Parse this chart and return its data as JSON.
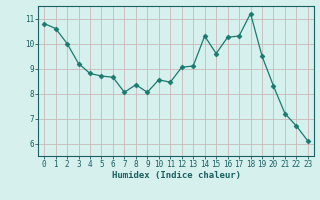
{
  "x": [
    0,
    1,
    2,
    3,
    4,
    5,
    6,
    7,
    8,
    9,
    10,
    11,
    12,
    13,
    14,
    15,
    16,
    17,
    18,
    19,
    20,
    21,
    22,
    23
  ],
  "y": [
    10.8,
    10.6,
    10.0,
    9.2,
    8.8,
    8.7,
    8.65,
    8.05,
    8.35,
    8.05,
    8.55,
    8.45,
    9.05,
    9.1,
    10.3,
    9.6,
    10.25,
    10.3,
    11.2,
    9.5,
    8.3,
    7.2,
    6.7,
    6.1
  ],
  "line_color": "#1a7a6e",
  "marker": "D",
  "marker_size": 2.5,
  "background_color": "#d6f0ee",
  "grid_color_v": "#c8b8b8",
  "grid_color_h": "#c8b8b8",
  "xlabel": "Humidex (Indice chaleur)",
  "xlim": [
    -0.5,
    23.5
  ],
  "ylim": [
    5.5,
    11.5
  ],
  "yticks": [
    6,
    7,
    8,
    9,
    10,
    11
  ],
  "xticks": [
    0,
    1,
    2,
    3,
    4,
    5,
    6,
    7,
    8,
    9,
    10,
    11,
    12,
    13,
    14,
    15,
    16,
    17,
    18,
    19,
    20,
    21,
    22,
    23
  ],
  "xtick_labels": [
    "0",
    "1",
    "2",
    "3",
    "4",
    "5",
    "6",
    "7",
    "8",
    "9",
    "10",
    "11",
    "12",
    "13",
    "14",
    "15",
    "16",
    "17",
    "18",
    "19",
    "20",
    "21",
    "22",
    "23"
  ],
  "ytick_labels": [
    "6",
    "7",
    "8",
    "9",
    "10",
    "11"
  ],
  "label_fontsize": 6.5,
  "tick_fontsize": 5.5,
  "tick_color": "#1a6060"
}
